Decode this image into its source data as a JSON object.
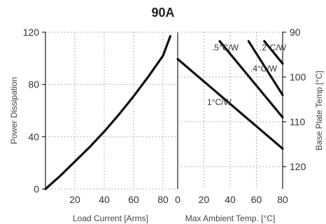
{
  "chart_data": {
    "title": "90A",
    "left_panel": {
      "type": "line",
      "xlabel": "Load Current  [Arms]",
      "ylabel": "Power Dissipation",
      "xlim": [
        0,
        90
      ],
      "ylim": [
        0,
        120
      ],
      "x_ticks": [
        "20",
        "40",
        "60",
        "80"
      ],
      "y_ticks": [
        "0",
        "40",
        "80",
        "120"
      ],
      "grid": true,
      "series": [
        {
          "x": [
            0,
            10,
            20,
            30,
            40,
            50,
            60,
            70,
            80,
            85
          ],
          "y": [
            0,
            10,
            21,
            32,
            44,
            57,
            71,
            86,
            102,
            117
          ]
        }
      ]
    },
    "right_panel": {
      "type": "line",
      "xlabel": "Max Ambient Temp. [°C]",
      "ylabel": "Base Plate Temp [°C]",
      "xlim": [
        0,
        80
      ],
      "y2lim": [
        90,
        125
      ],
      "x_ticks": [
        "0",
        "20",
        "40",
        "60",
        "80"
      ],
      "y2_ticks": [
        "90",
        "100",
        "110",
        "120"
      ],
      "grid": true,
      "series": [
        {
          "name": "1°C/W",
          "x": [
            0,
            80
          ],
          "y": [
            96,
            116
          ]
        },
        {
          "name": ".5°C/W",
          "x": [
            32,
            80
          ],
          "y": [
            92,
            109
          ]
        },
        {
          "name": ".4°C/W",
          "x": [
            54,
            80
          ],
          "y": [
            92,
            104
          ]
        },
        {
          "name": ".2°C/W",
          "x": [
            66,
            80
          ],
          "y": [
            92,
            97
          ]
        }
      ],
      "annotations": [
        "1°C/W",
        ".5°C/W",
        ".4°C/W",
        ".2°C/W"
      ]
    }
  }
}
